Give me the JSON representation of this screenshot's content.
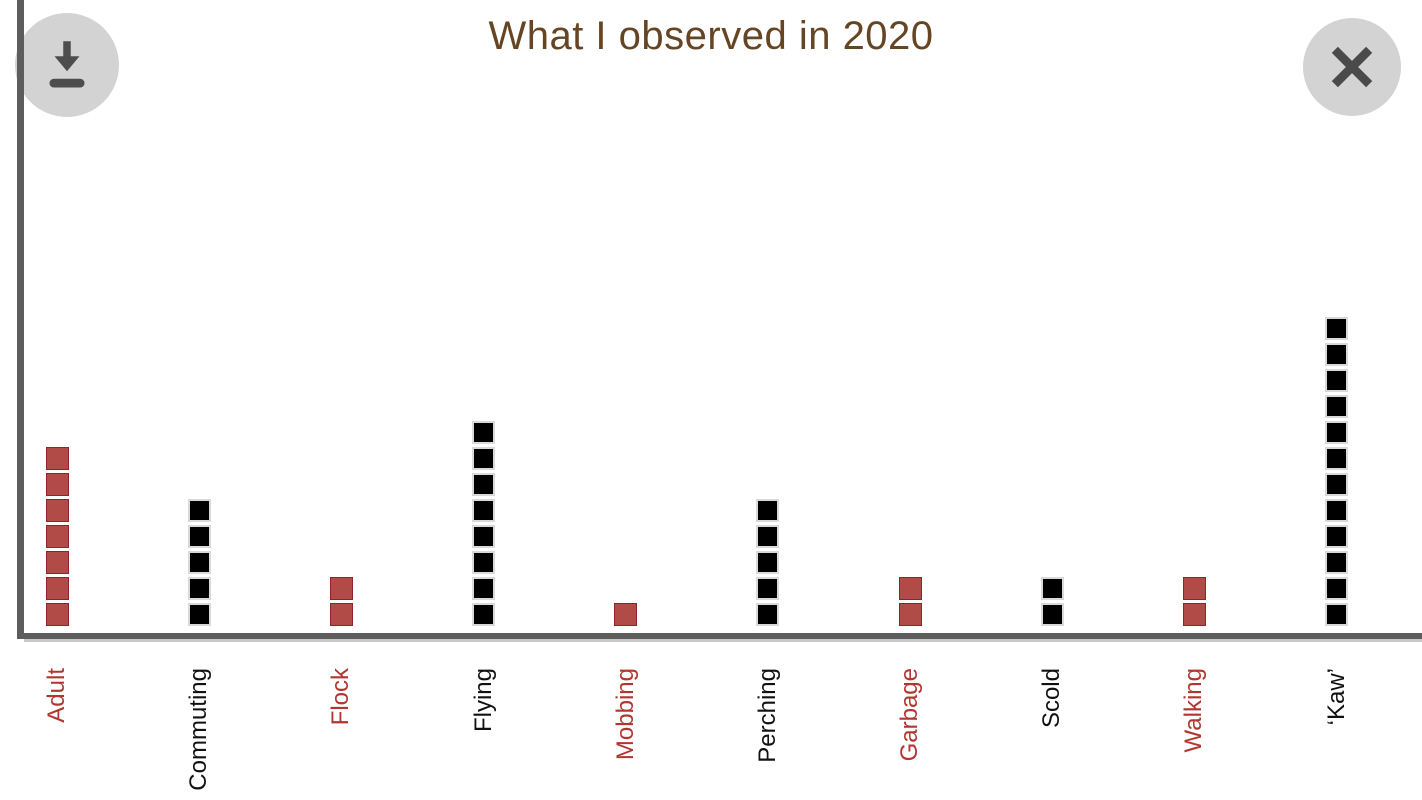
{
  "title": "What I observed in 2020",
  "toolbar": {
    "download_icon": "download-arrow-with-tray",
    "close_icon": "x-cross"
  },
  "colors": {
    "title": "#654523",
    "axis": "#5d5d5d",
    "button_bg": "#d3d3d3",
    "icon": "#4d4d4d",
    "red_fill": "#b14b48",
    "red_border": "#8f2527",
    "black_fill": "#000000",
    "black_border": "#d9d9d9",
    "red_label": "#b23530",
    "black_label": "#111111"
  },
  "chart_data": {
    "type": "bar",
    "subtype": "waffle-stacked-squares",
    "title": "What I observed in 2020",
    "categories": [
      "Adult",
      "Commuting",
      "Flock",
      "Flying",
      "Mobbing",
      "Perching",
      "Garbage",
      "Scold",
      "Walking",
      "‘Kaw’"
    ],
    "values": [
      7,
      5,
      2,
      8,
      1,
      5,
      2,
      2,
      2,
      12
    ],
    "series_colors": [
      "red",
      "black",
      "red",
      "black",
      "red",
      "black",
      "red",
      "black",
      "red",
      "black"
    ],
    "units_per_square": 1,
    "xlabel": "",
    "ylabel": "",
    "ylim": [
      0,
      12
    ],
    "legend": "none",
    "grid": false,
    "tick_label_rotation_deg": 90
  }
}
